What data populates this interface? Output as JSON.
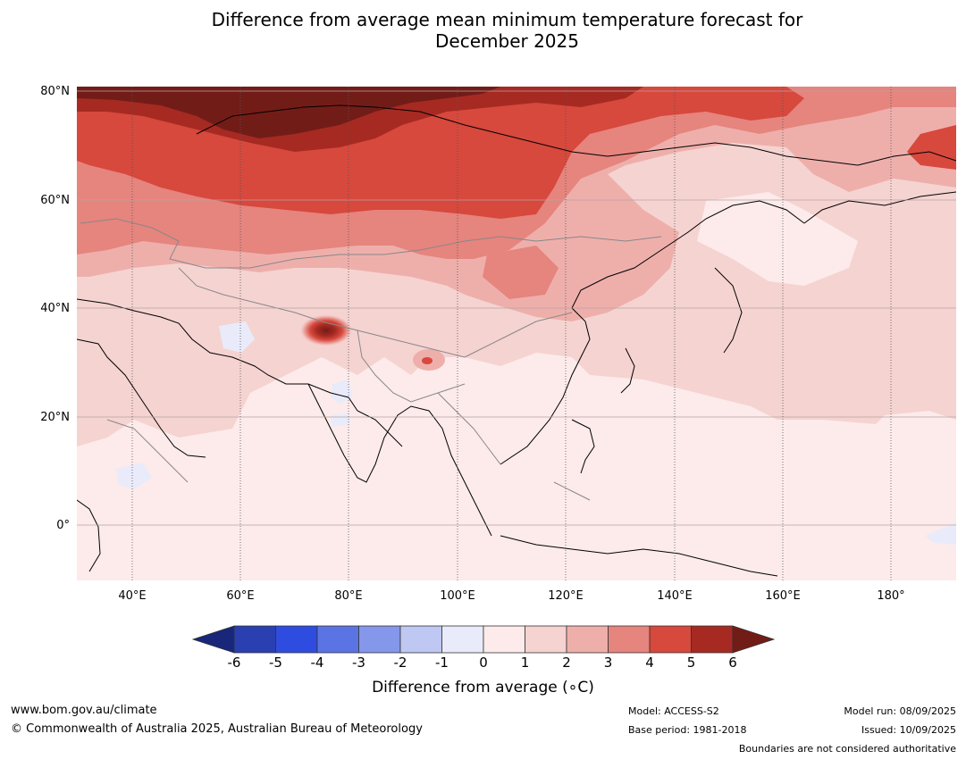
{
  "title_line1": "Difference from average mean minimum temperature forecast for",
  "title_line2": "December 2025",
  "lat_ticks": [
    "80°N",
    "60°N",
    "40°N",
    "20°N",
    "0°"
  ],
  "lon_ticks": [
    "40°E",
    "60°E",
    "80°E",
    "100°E",
    "120°E",
    "140°E",
    "160°E",
    "180°"
  ],
  "colorbar": {
    "title": "Difference from average (∘C)",
    "ticks": [
      "-6",
      "-5",
      "-4",
      "-3",
      "-2",
      "-1",
      "0",
      "1",
      "2",
      "3",
      "4",
      "5",
      "6"
    ],
    "colors": [
      "#18277a",
      "#2a3fb0",
      "#2f4ce0",
      "#5b74e4",
      "#8597ea",
      "#bec8f2",
      "#e9ebfa",
      "#fcebea",
      "#f5d3d1",
      "#eeafab",
      "#e6847e",
      "#d7483d",
      "#a62a22",
      "#721c18"
    ]
  },
  "footer": {
    "website": "www.bom.gov.au/climate",
    "copyright": "© Commonwealth of Australia 2025, Australian Bureau of Meteorology",
    "model": "Model: ACCESS-S2",
    "base_period": "Base period: 1981-2018",
    "model_run": "Model run: 08/09/2025",
    "issued": "Issued: 10/09/2025",
    "boundaries_note": "Boundaries are not considered authoritative"
  }
}
